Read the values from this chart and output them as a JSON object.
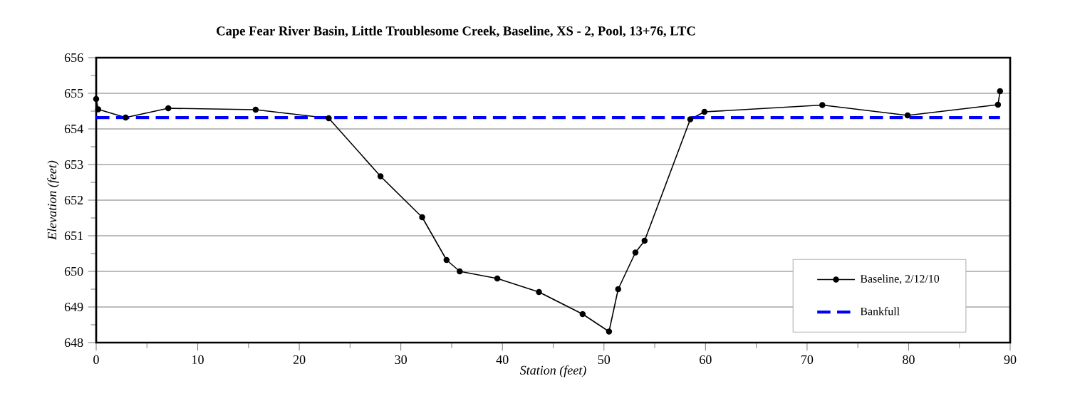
{
  "chart_data": {
    "type": "line",
    "title": "Cape Fear River Basin, Little Troublesome Creek, Baseline, XS - 2, Pool, 13+76, LTC",
    "xlabel": "Station (feet)",
    "ylabel": "Elevation (feet)",
    "series": [
      {
        "name": "Baseline, 2/12/10",
        "color": "#000000",
        "marker": "circle",
        "line_style": "solid",
        "x": [
          0,
          0.2,
          2.9,
          7.1,
          15.7,
          22.9,
          28,
          32.1,
          34.5,
          35.8,
          39.5,
          43.6,
          47.9,
          50.5,
          51.4,
          53.1,
          54,
          58.5,
          59.9,
          71.5,
          79.9,
          88.8,
          89
        ],
        "values": [
          654.84,
          654.55,
          654.32,
          654.58,
          654.54,
          654.3,
          652.67,
          651.52,
          650.32,
          650,
          649.8,
          649.42,
          648.8,
          648.31,
          649.5,
          650.53,
          650.86,
          654.27,
          654.48,
          654.67,
          654.38,
          654.68,
          655.06
        ]
      },
      {
        "name": "Bankfull",
        "color": "#0000ff",
        "marker": "none",
        "line_style": "dashed",
        "x": [
          0,
          89
        ],
        "values": [
          654.32,
          654.32
        ]
      }
    ],
    "xlim": [
      0,
      90
    ],
    "ylim": [
      648,
      656
    ],
    "xticks": [
      0,
      10,
      20,
      30,
      40,
      50,
      60,
      70,
      80,
      90
    ],
    "yticks": [
      648,
      649,
      650,
      651,
      652,
      653,
      654,
      655,
      656
    ],
    "grid": "y",
    "legend": "bottom right"
  }
}
